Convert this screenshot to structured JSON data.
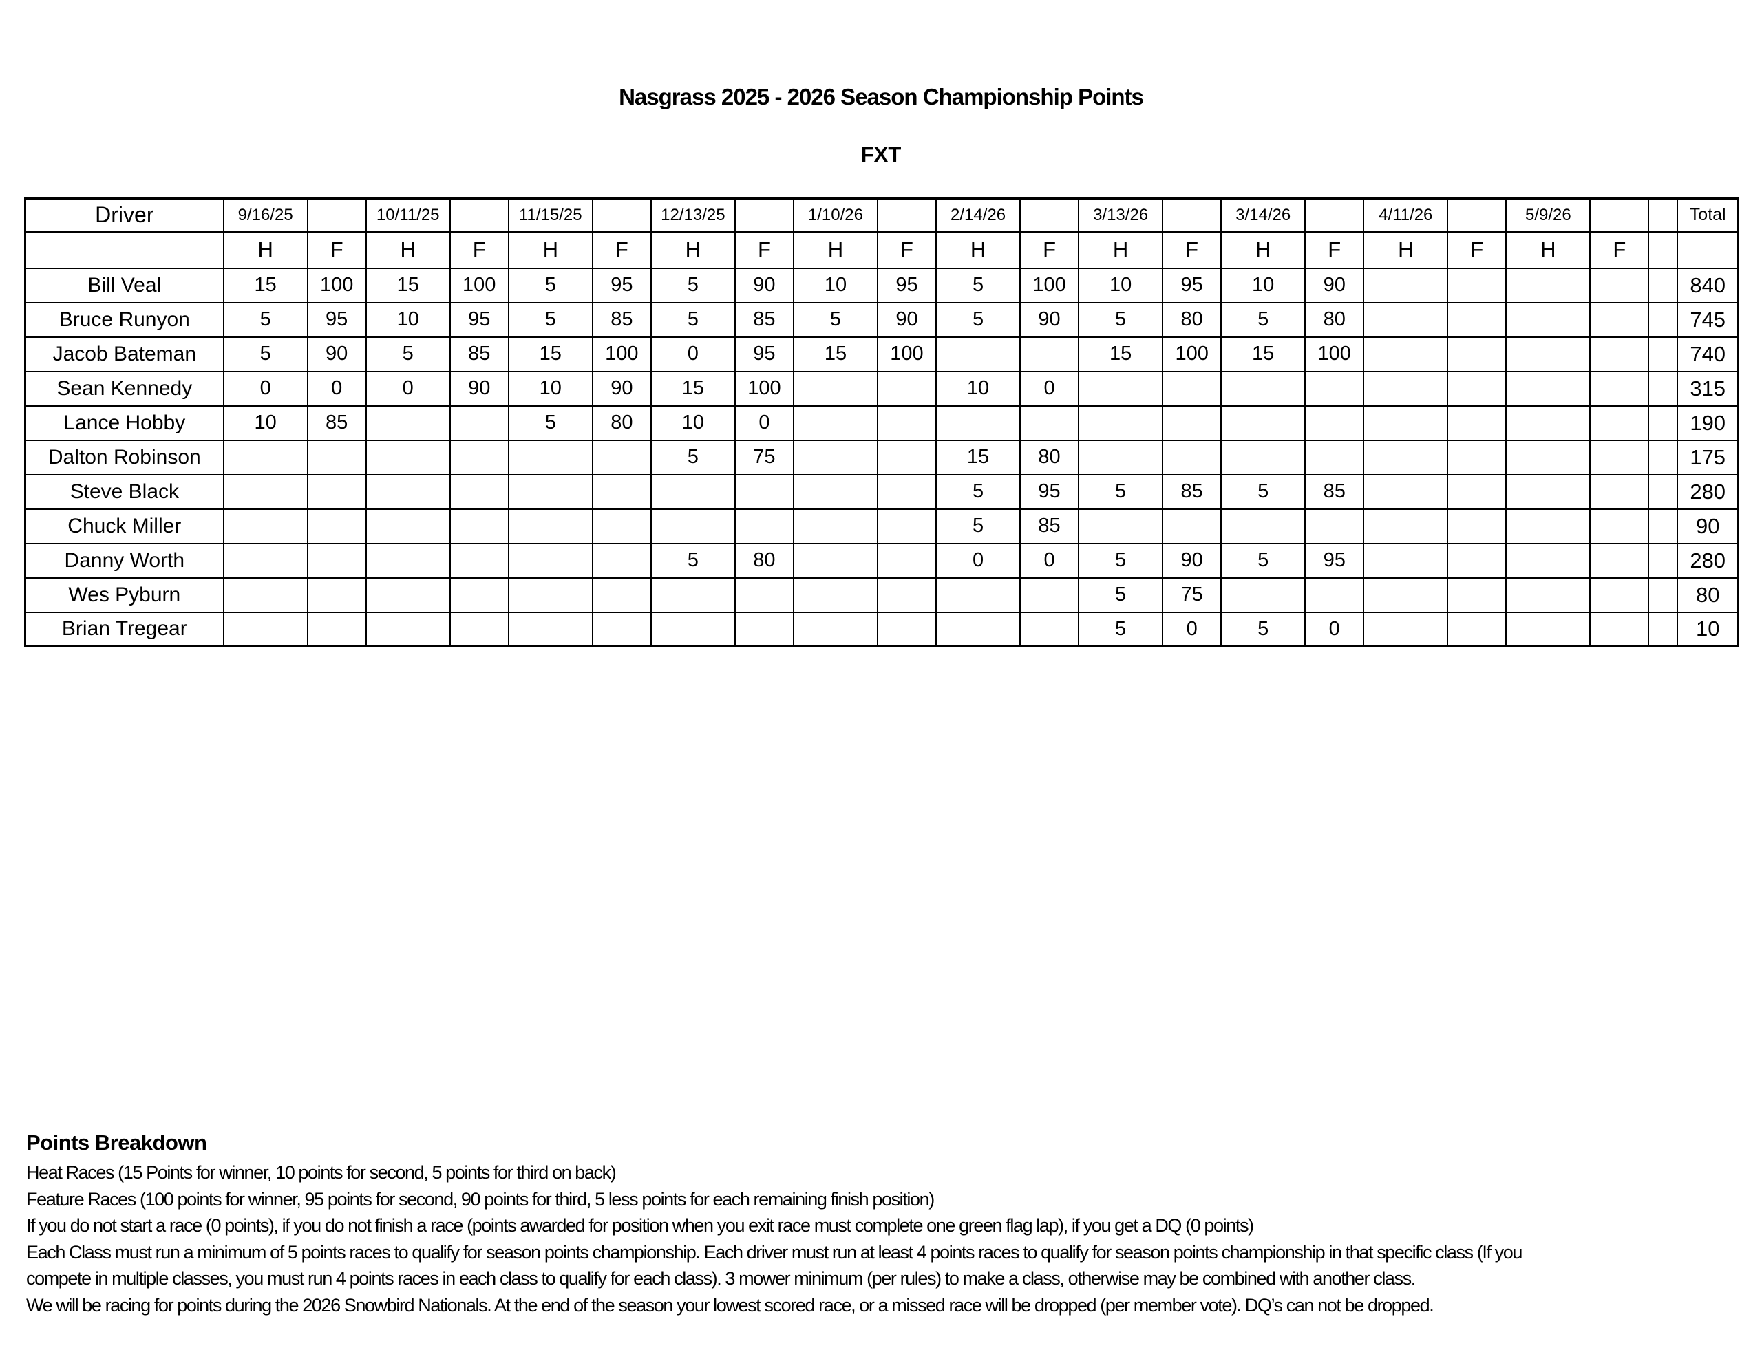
{
  "title": "Nasgrass 2025 - 2026 Season Championship Points",
  "class_label": "FXT",
  "table": {
    "driver_header": "Driver",
    "total_header": "Total",
    "heat_label": "H",
    "feature_label": "F",
    "dates": [
      "9/16/25",
      "10/11/25",
      "11/15/25",
      "12/13/25",
      "1/10/26",
      "2/14/26",
      "3/13/26",
      "3/14/26",
      "4/11/26",
      "5/9/26"
    ],
    "rows": [
      {
        "driver": "Bill Veal",
        "scores": [
          "15",
          "100",
          "15",
          "100",
          "5",
          "95",
          "5",
          "90",
          "10",
          "95",
          "5",
          "100",
          "10",
          "95",
          "10",
          "90",
          "",
          "",
          "",
          ""
        ],
        "total": "840"
      },
      {
        "driver": "Bruce Runyon",
        "scores": [
          "5",
          "95",
          "10",
          "95",
          "5",
          "85",
          "5",
          "85",
          "5",
          "90",
          "5",
          "90",
          "5",
          "80",
          "5",
          "80",
          "",
          "",
          "",
          ""
        ],
        "total": "745"
      },
      {
        "driver": "Jacob Bateman",
        "scores": [
          "5",
          "90",
          "5",
          "85",
          "15",
          "100",
          "0",
          "95",
          "15",
          "100",
          "",
          "",
          "15",
          "100",
          "15",
          "100",
          "",
          "",
          "",
          ""
        ],
        "total": "740"
      },
      {
        "driver": "Sean Kennedy",
        "scores": [
          "0",
          "0",
          "0",
          "90",
          "10",
          "90",
          "15",
          "100",
          "",
          "",
          "10",
          "0",
          "",
          "",
          "",
          "",
          "",
          "",
          "",
          ""
        ],
        "total": "315"
      },
      {
        "driver": "Lance Hobby",
        "scores": [
          "10",
          "85",
          "",
          "",
          "5",
          "80",
          "10",
          "0",
          "",
          "",
          "",
          "",
          "",
          "",
          "",
          "",
          "",
          "",
          "",
          ""
        ],
        "total": "190"
      },
      {
        "driver": "Dalton Robinson",
        "scores": [
          "",
          "",
          "",
          "",
          "",
          "",
          "5",
          "75",
          "",
          "",
          "15",
          "80",
          "",
          "",
          "",
          "",
          "",
          "",
          "",
          ""
        ],
        "total": "175"
      },
      {
        "driver": "Steve Black",
        "scores": [
          "",
          "",
          "",
          "",
          "",
          "",
          "",
          "",
          "",
          "",
          "5",
          "95",
          "5",
          "85",
          "5",
          "85",
          "",
          "",
          "",
          ""
        ],
        "total": "280"
      },
      {
        "driver": "Chuck Miller",
        "scores": [
          "",
          "",
          "",
          "",
          "",
          "",
          "",
          "",
          "",
          "",
          "5",
          "85",
          "",
          "",
          "",
          "",
          "",
          "",
          "",
          ""
        ],
        "total": "90"
      },
      {
        "driver": "Danny Worth",
        "scores": [
          "",
          "",
          "",
          "",
          "",
          "",
          "5",
          "80",
          "",
          "",
          "0",
          "0",
          "5",
          "90",
          "5",
          "95",
          "",
          "",
          "",
          ""
        ],
        "total": "280"
      },
      {
        "driver": "Wes Pyburn",
        "scores": [
          "",
          "",
          "",
          "",
          "",
          "",
          "",
          "",
          "",
          "",
          "",
          "",
          "5",
          "75",
          "",
          "",
          "",
          "",
          "",
          ""
        ],
        "total": "80"
      },
      {
        "driver": "Brian Tregear",
        "scores": [
          "",
          "",
          "",
          "",
          "",
          "",
          "",
          "",
          "",
          "",
          "",
          "",
          "5",
          "0",
          "5",
          "0",
          "",
          "",
          "",
          ""
        ],
        "total": "10"
      }
    ]
  },
  "footer": {
    "heading": "Points Breakdown",
    "lines": [
      "Heat Races (15 Points for winner, 10 points for second, 5 points for third on back)",
      "Feature Races (100 points for winner, 95 points for second, 90 points for third, 5 less points for each remaining finish position)",
      "If you do not start a race (0 points), if you do not finish a race (points awarded for position when you exit race must complete one green flag lap), if you get a DQ (0 points)",
      "Each Class must run a minimum of 5 points races to qualify for season points championship. Each driver must run at least 4 points races to qualify for season points championship in that specific class (If you",
      "compete in multiple classes, you must run 4 points races in each class to qualify for each class). 3 mower minimum (per rules) to make a class, otherwise may be combined with another class.",
      "We will be racing for points during the 2026 Snowbird Nationals. At the end of the season your lowest scored race, or a missed race will be dropped (per member vote). DQ’s can not be dropped."
    ]
  }
}
